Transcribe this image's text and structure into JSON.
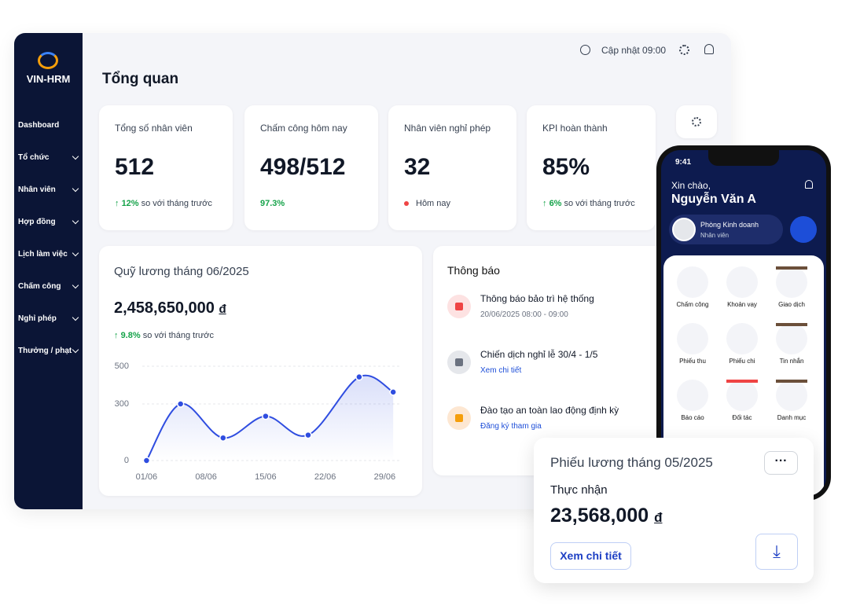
{
  "sidebar": {
    "logo": "VIN-HRM",
    "menu": [
      "Dashboard",
      "Tổ chức",
      "Nhân viên",
      "Hợp đồng",
      "Lịch làm việc",
      "Chấm công",
      "Nghỉ phép",
      "Thưởng / phạt"
    ]
  },
  "header": {
    "update": "Cập nhật 09:00",
    "title": "Tổng quan"
  },
  "stats": [
    {
      "label": "Tổng số nhân viên",
      "value": "512",
      "delta": "12%",
      "note": "so với tháng trước"
    },
    {
      "label": "Chấm công hôm nay",
      "value": "498/512",
      "delta": "97.3%"
    },
    {
      "label": "Nhân viên nghỉ phép",
      "value": "32",
      "note": "Hôm nay"
    },
    {
      "label": "KPI hoàn thành",
      "value": "85%",
      "delta": "6%",
      "note": "so với tháng trước"
    }
  ],
  "payroll": {
    "title": "Quỹ lương tháng 06/2025",
    "amount": "2,458,650,000",
    "currency": "đ",
    "delta": "9.8%",
    "note": "so với tháng trước"
  },
  "chart_data": {
    "type": "line",
    "x": [
      1,
      5,
      10,
      15,
      20,
      26,
      30
    ],
    "series": [
      {
        "color": "#2f4de0",
        "values": [
          0,
          300,
          120,
          235,
          135,
          443,
          363
        ]
      }
    ],
    "xlim": [
      0.5,
      31
    ],
    "xticks": [
      {
        "value": 1,
        "label": "01/06"
      },
      {
        "value": 8,
        "label": "08/06"
      },
      {
        "value": 15,
        "label": "15/06"
      },
      {
        "value": 22,
        "label": "22/06"
      },
      {
        "value": 29,
        "label": "29/06"
      }
    ],
    "ylim": [
      0,
      500
    ],
    "yticks": [
      0,
      300,
      500
    ],
    "grid": true
  },
  "notifications": {
    "title": "Thông báo",
    "items": [
      {
        "title": "Thông báo bảo trì hệ thống",
        "detail": "20/06/2025 08:00 - 09:00"
      },
      {
        "title": "Chiến dịch nghỉ lễ 30/4 - 1/5",
        "detail": "Xem chi tiết"
      },
      {
        "title": "Đào tạo an toàn lao động định kỳ",
        "detail": "Đăng ký tham gia"
      }
    ]
  },
  "phone": {
    "time": "9:41",
    "greeting": "Xin chào,",
    "name": "Nguyễn Văn A",
    "department": "Phòng Kinh doanh",
    "role": "Nhân viên",
    "apps": [
      "Chấm công",
      "Khoản vay",
      "Giao dịch",
      "Phiếu thu",
      "Phiếu chi",
      "Tin nhắn",
      "Báo cáo",
      "Đối tác",
      "Danh mục"
    ]
  },
  "payslip": {
    "title": "Phiếu lương tháng 05/2025",
    "label": "Thực nhận",
    "amount": "23,568,000",
    "currency": "đ",
    "button": "Xem chi tiết"
  }
}
